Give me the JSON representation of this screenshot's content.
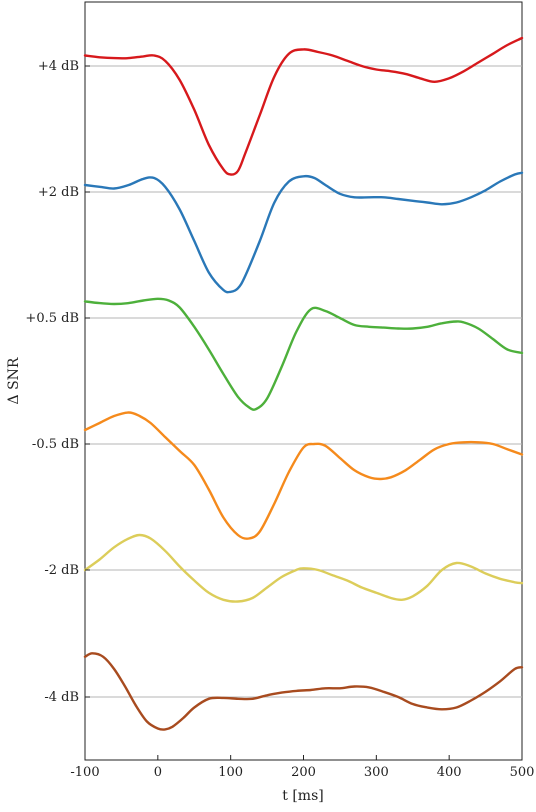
{
  "chart_data": {
    "type": "line",
    "xlabel": "t [ms]",
    "ylabel": "Δ SNR",
    "xlim": [
      -100,
      500
    ],
    "x_ticks": [
      "-100",
      "0",
      "100",
      "200",
      "300",
      "400",
      "500"
    ],
    "y_ticks": [
      "+4 dB",
      "+2 dB",
      "+0.5 dB",
      "-0.5 dB",
      "-2 dB",
      "-4 dB"
    ],
    "grid": "horizontal baselines at each condition",
    "series": [
      {
        "name": "+4 dB",
        "color": "#d7191c",
        "x": [
          -100,
          -80,
          -60,
          -40,
          -20,
          -5,
          10,
          30,
          50,
          70,
          90,
          100,
          110,
          120,
          140,
          160,
          180,
          200,
          220,
          240,
          260,
          280,
          300,
          320,
          340,
          360,
          380,
          400,
          420,
          440,
          460,
          480,
          500
        ],
        "y": [
          0.6,
          0.5,
          0.45,
          0.45,
          0.55,
          0.6,
          0.3,
          -0.8,
          -2.5,
          -4.5,
          -5.9,
          -6.2,
          -6.0,
          -5.0,
          -2.8,
          -0.6,
          0.7,
          0.95,
          0.8,
          0.6,
          0.3,
          0.0,
          -0.2,
          -0.3,
          -0.45,
          -0.7,
          -0.9,
          -0.7,
          -0.3,
          0.2,
          0.7,
          1.2,
          1.6
        ]
      },
      {
        "name": "+2 dB",
        "color": "#2a78b8",
        "x": [
          -100,
          -80,
          -60,
          -40,
          -20,
          -5,
          10,
          30,
          50,
          70,
          90,
          100,
          110,
          120,
          140,
          160,
          180,
          200,
          215,
          230,
          250,
          270,
          290,
          310,
          330,
          350,
          370,
          390,
          410,
          430,
          450,
          470,
          490,
          500
        ],
        "y": [
          0.4,
          0.3,
          0.2,
          0.4,
          0.75,
          0.8,
          0.3,
          -1.0,
          -2.8,
          -4.6,
          -5.6,
          -5.7,
          -5.5,
          -4.8,
          -2.8,
          -0.6,
          0.6,
          0.9,
          0.8,
          0.4,
          -0.1,
          -0.3,
          -0.3,
          -0.3,
          -0.4,
          -0.5,
          -0.6,
          -0.7,
          -0.6,
          -0.3,
          0.1,
          0.6,
          1.0,
          1.1
        ]
      },
      {
        "name": "+0.5 dB",
        "color": "#4db03b",
        "x": [
          -100,
          -80,
          -60,
          -40,
          -20,
          0,
          15,
          30,
          50,
          70,
          90,
          110,
          125,
          135,
          150,
          170,
          190,
          210,
          230,
          250,
          270,
          290,
          310,
          330,
          350,
          370,
          390,
          410,
          420,
          440,
          460,
          480,
          500
        ],
        "y": [
          0.95,
          0.85,
          0.8,
          0.85,
          1.0,
          1.1,
          1.0,
          0.6,
          -0.5,
          -1.8,
          -3.2,
          -4.5,
          -5.1,
          -5.2,
          -4.6,
          -2.8,
          -0.8,
          0.5,
          0.4,
          0.0,
          -0.4,
          -0.5,
          -0.55,
          -0.6,
          -0.6,
          -0.5,
          -0.3,
          -0.2,
          -0.25,
          -0.6,
          -1.2,
          -1.8,
          -2.0
        ]
      },
      {
        "name": "-0.5 dB",
        "color": "#f58a1c",
        "x": [
          -100,
          -80,
          -60,
          -40,
          -25,
          -10,
          10,
          30,
          50,
          70,
          90,
          110,
          125,
          140,
          160,
          180,
          200,
          215,
          230,
          250,
          270,
          290,
          305,
          320,
          340,
          360,
          380,
          400,
          420,
          440,
          460,
          480,
          500
        ],
        "y": [
          0.8,
          1.2,
          1.6,
          1.8,
          1.6,
          1.2,
          0.4,
          -0.4,
          -1.2,
          -2.6,
          -4.2,
          -5.2,
          -5.4,
          -5.0,
          -3.4,
          -1.6,
          -0.2,
          0.0,
          -0.1,
          -0.8,
          -1.5,
          -1.9,
          -2.0,
          -1.9,
          -1.5,
          -0.9,
          -0.3,
          0.0,
          0.1,
          0.1,
          0.0,
          -0.3,
          -0.6
        ]
      },
      {
        "name": "-2 dB",
        "color": "#dccd5a",
        "x": [
          -100,
          -80,
          -60,
          -40,
          -25,
          -10,
          10,
          30,
          50,
          70,
          90,
          110,
          130,
          150,
          170,
          190,
          200,
          220,
          240,
          260,
          280,
          300,
          320,
          335,
          350,
          370,
          390,
          410,
          430,
          450,
          470,
          490,
          500
        ],
        "y": [
          0.0,
          0.6,
          1.3,
          1.8,
          2.0,
          1.8,
          1.1,
          0.2,
          -0.6,
          -1.3,
          -1.7,
          -1.8,
          -1.6,
          -1.0,
          -0.4,
          0.0,
          0.1,
          0.0,
          -0.3,
          -0.6,
          -1.0,
          -1.3,
          -1.6,
          -1.7,
          -1.5,
          -0.9,
          0.0,
          0.4,
          0.2,
          -0.2,
          -0.5,
          -0.7,
          -0.75
        ]
      },
      {
        "name": "-4 dB",
        "color": "#a84b1f",
        "x": [
          -100,
          -90,
          -75,
          -60,
          -45,
          -30,
          -15,
          0,
          10,
          20,
          35,
          50,
          70,
          90,
          110,
          130,
          150,
          170,
          190,
          210,
          230,
          250,
          270,
          290,
          310,
          330,
          350,
          370,
          390,
          410,
          430,
          450,
          470,
          490,
          500
        ],
        "y": [
          2.3,
          2.5,
          2.3,
          1.6,
          0.6,
          -0.5,
          -1.4,
          -1.8,
          -1.85,
          -1.7,
          -1.2,
          -0.6,
          -0.1,
          -0.05,
          -0.1,
          -0.1,
          0.1,
          0.25,
          0.35,
          0.4,
          0.5,
          0.5,
          0.6,
          0.55,
          0.3,
          0.0,
          -0.4,
          -0.6,
          -0.7,
          -0.6,
          -0.2,
          0.3,
          0.9,
          1.6,
          1.7
        ]
      }
    ]
  }
}
